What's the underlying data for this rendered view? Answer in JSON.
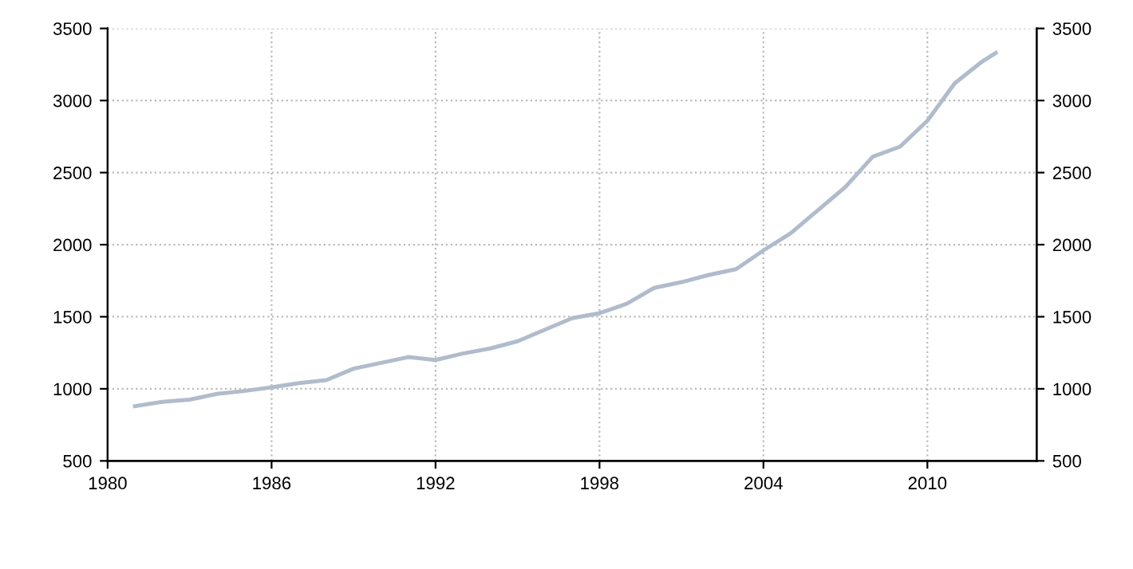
{
  "chart_data": {
    "type": "line",
    "x": [
      1981,
      1982,
      1983,
      1984,
      1985,
      1986,
      1987,
      1988,
      1989,
      1990,
      1991,
      1992,
      1993,
      1994,
      1995,
      1996,
      1997,
      1998,
      1999,
      2000,
      2001,
      2002,
      2003,
      2004,
      2005,
      2006,
      2007,
      2008,
      2009,
      2010,
      2011,
      2012,
      2012.5
    ],
    "series": [
      {
        "color": "#b0bccc",
        "values": [
          880,
          910,
          925,
          965,
          985,
          1010,
          1040,
          1060,
          1140,
          1180,
          1220,
          1200,
          1245,
          1280,
          1330,
          1410,
          1490,
          1525,
          1590,
          1700,
          1740,
          1790,
          1830,
          1960,
          2080,
          2240,
          2400,
          2610,
          2680,
          2860,
          3120,
          3270,
          3330
        ]
      }
    ],
    "xlim": [
      1980,
      2014
    ],
    "xticks": [
      1980,
      1986,
      1992,
      1998,
      2004,
      2010
    ],
    "ylim": [
      500,
      3500
    ],
    "yticks": [
      500,
      1000,
      1500,
      2000,
      2500,
      3000,
      3500
    ],
    "y2lim": [
      500,
      3500
    ],
    "y2ticks": [
      500,
      1000,
      1500,
      2000,
      2500,
      3000,
      3500
    ],
    "grid": true,
    "line_style": "solid",
    "marker": "none"
  }
}
